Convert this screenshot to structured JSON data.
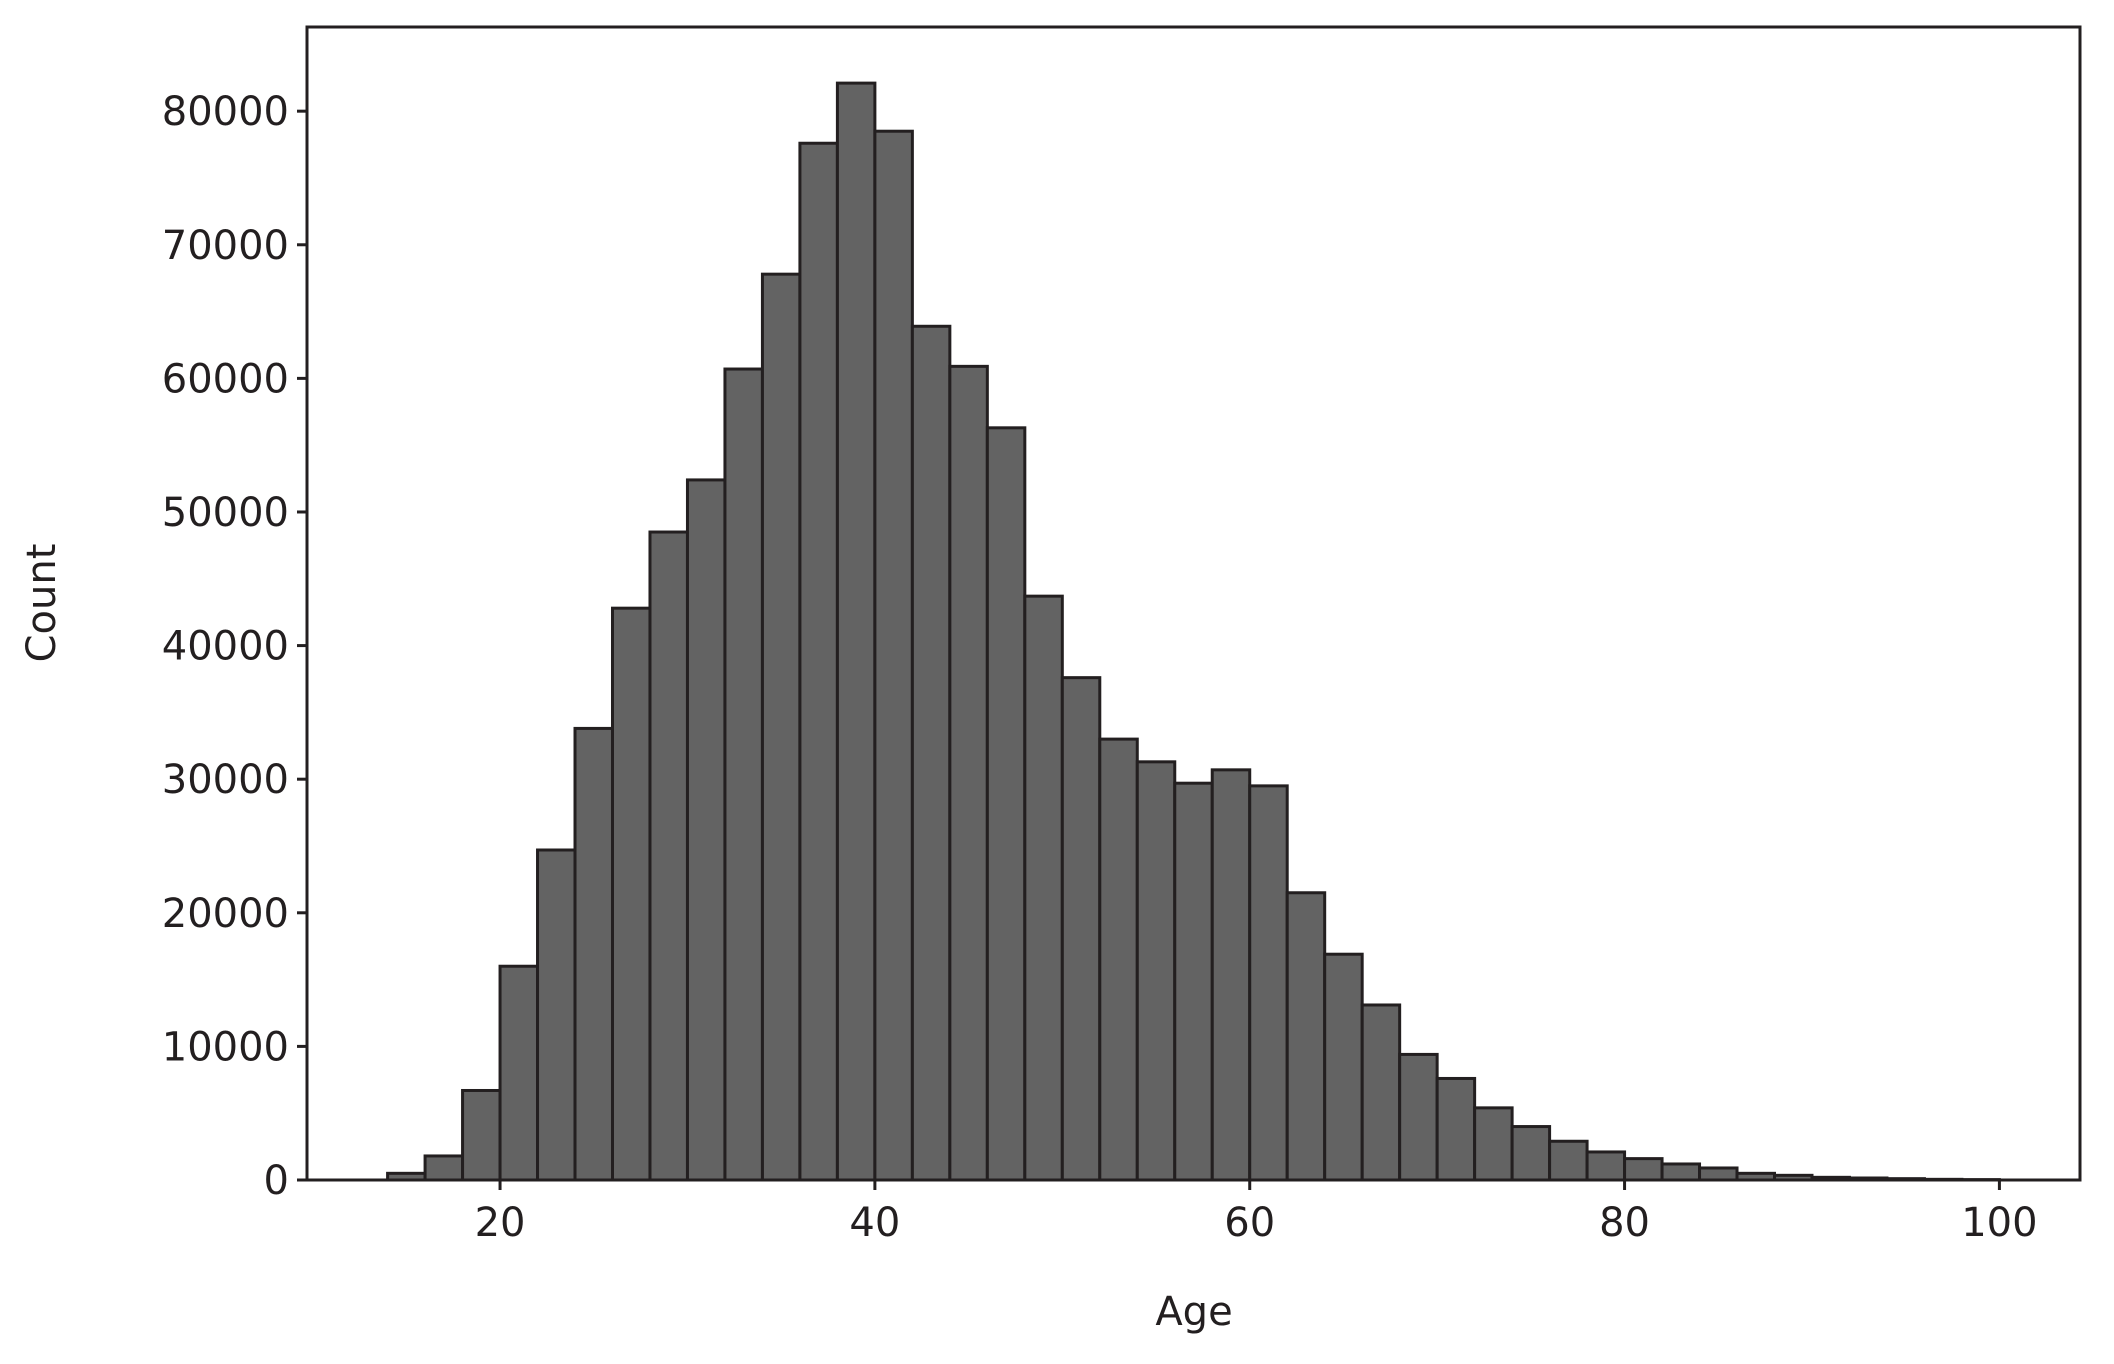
{
  "chart_data": {
    "type": "histogram",
    "x_label": "Age",
    "y_label": "Count",
    "bins": [
      14,
      16,
      18,
      20,
      22,
      24,
      26,
      28,
      30,
      32,
      34,
      36,
      38,
      40,
      42,
      44,
      46,
      48,
      50,
      52,
      54,
      56,
      58,
      60,
      62,
      64,
      66,
      68,
      70,
      72,
      74,
      76,
      78,
      80,
      82,
      84,
      86,
      88,
      90,
      92,
      94,
      96,
      98,
      100
    ],
    "values": [
      500,
      1800,
      6700,
      16000,
      24700,
      33800,
      42800,
      48500,
      52400,
      60700,
      67800,
      77600,
      82100,
      78500,
      63900,
      60900,
      56300,
      43700,
      37600,
      33000,
      31300,
      29700,
      30700,
      29500,
      21500,
      16900,
      13100,
      9400,
      7600,
      5400,
      4000,
      2900,
      2100,
      1600,
      1200,
      900,
      500,
      350,
      200,
      150,
      100,
      50,
      30
    ],
    "color": "#636363",
    "edgecolor": "#231f20",
    "xlim": [
      9.7,
      104.3
    ],
    "xticks": [
      20,
      40,
      60,
      80,
      100
    ],
    "ylim": [
      0,
      86300
    ],
    "yticks": [
      0,
      10000,
      20000,
      30000,
      40000,
      50000,
      60000,
      70000,
      80000
    ],
    "grid": false
  }
}
